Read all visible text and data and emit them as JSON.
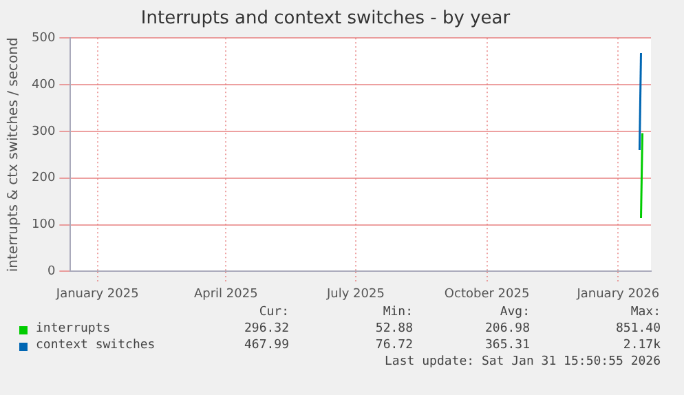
{
  "chart_data": {
    "type": "line",
    "title": "Interrupts and context switches - by year",
    "ylabel": "interrupts & ctx switches / second",
    "series": [
      {
        "name": "interrupts",
        "color": "#00cc00",
        "x": [
          "2026-01-17",
          "2026-01-18"
        ],
        "values": [
          114,
          296
        ]
      },
      {
        "name": "context switches",
        "color": "#0066b3",
        "x": [
          "2026-01-16",
          "2026-01-17"
        ],
        "values": [
          260,
          468
        ]
      }
    ],
    "xlim": [
      "2024-12-13",
      "2026-01-24"
    ],
    "xticks": [
      {
        "value": "2025-01-01",
        "label": "January 2025"
      },
      {
        "value": "2025-04-01",
        "label": "April 2025"
      },
      {
        "value": "2025-07-01",
        "label": "July 2025"
      },
      {
        "value": "2025-10-01",
        "label": "October 2025"
      },
      {
        "value": "2026-01-01",
        "label": "January 2026"
      }
    ],
    "ylim": [
      0,
      500
    ],
    "yticks": [
      0,
      100,
      200,
      300,
      400,
      500
    ],
    "grid": true,
    "legend": "bottom",
    "marker": "none",
    "annotations": [
      "Cur:",
      "Min:",
      "Avg:",
      "Max:",
      "296.32",
      "52.88",
      "206.98",
      "851.40",
      "467.99",
      "76.72",
      "365.31",
      "2.17k",
      "Last update: Sat Jan 31 15:50:55 2026"
    ]
  }
}
